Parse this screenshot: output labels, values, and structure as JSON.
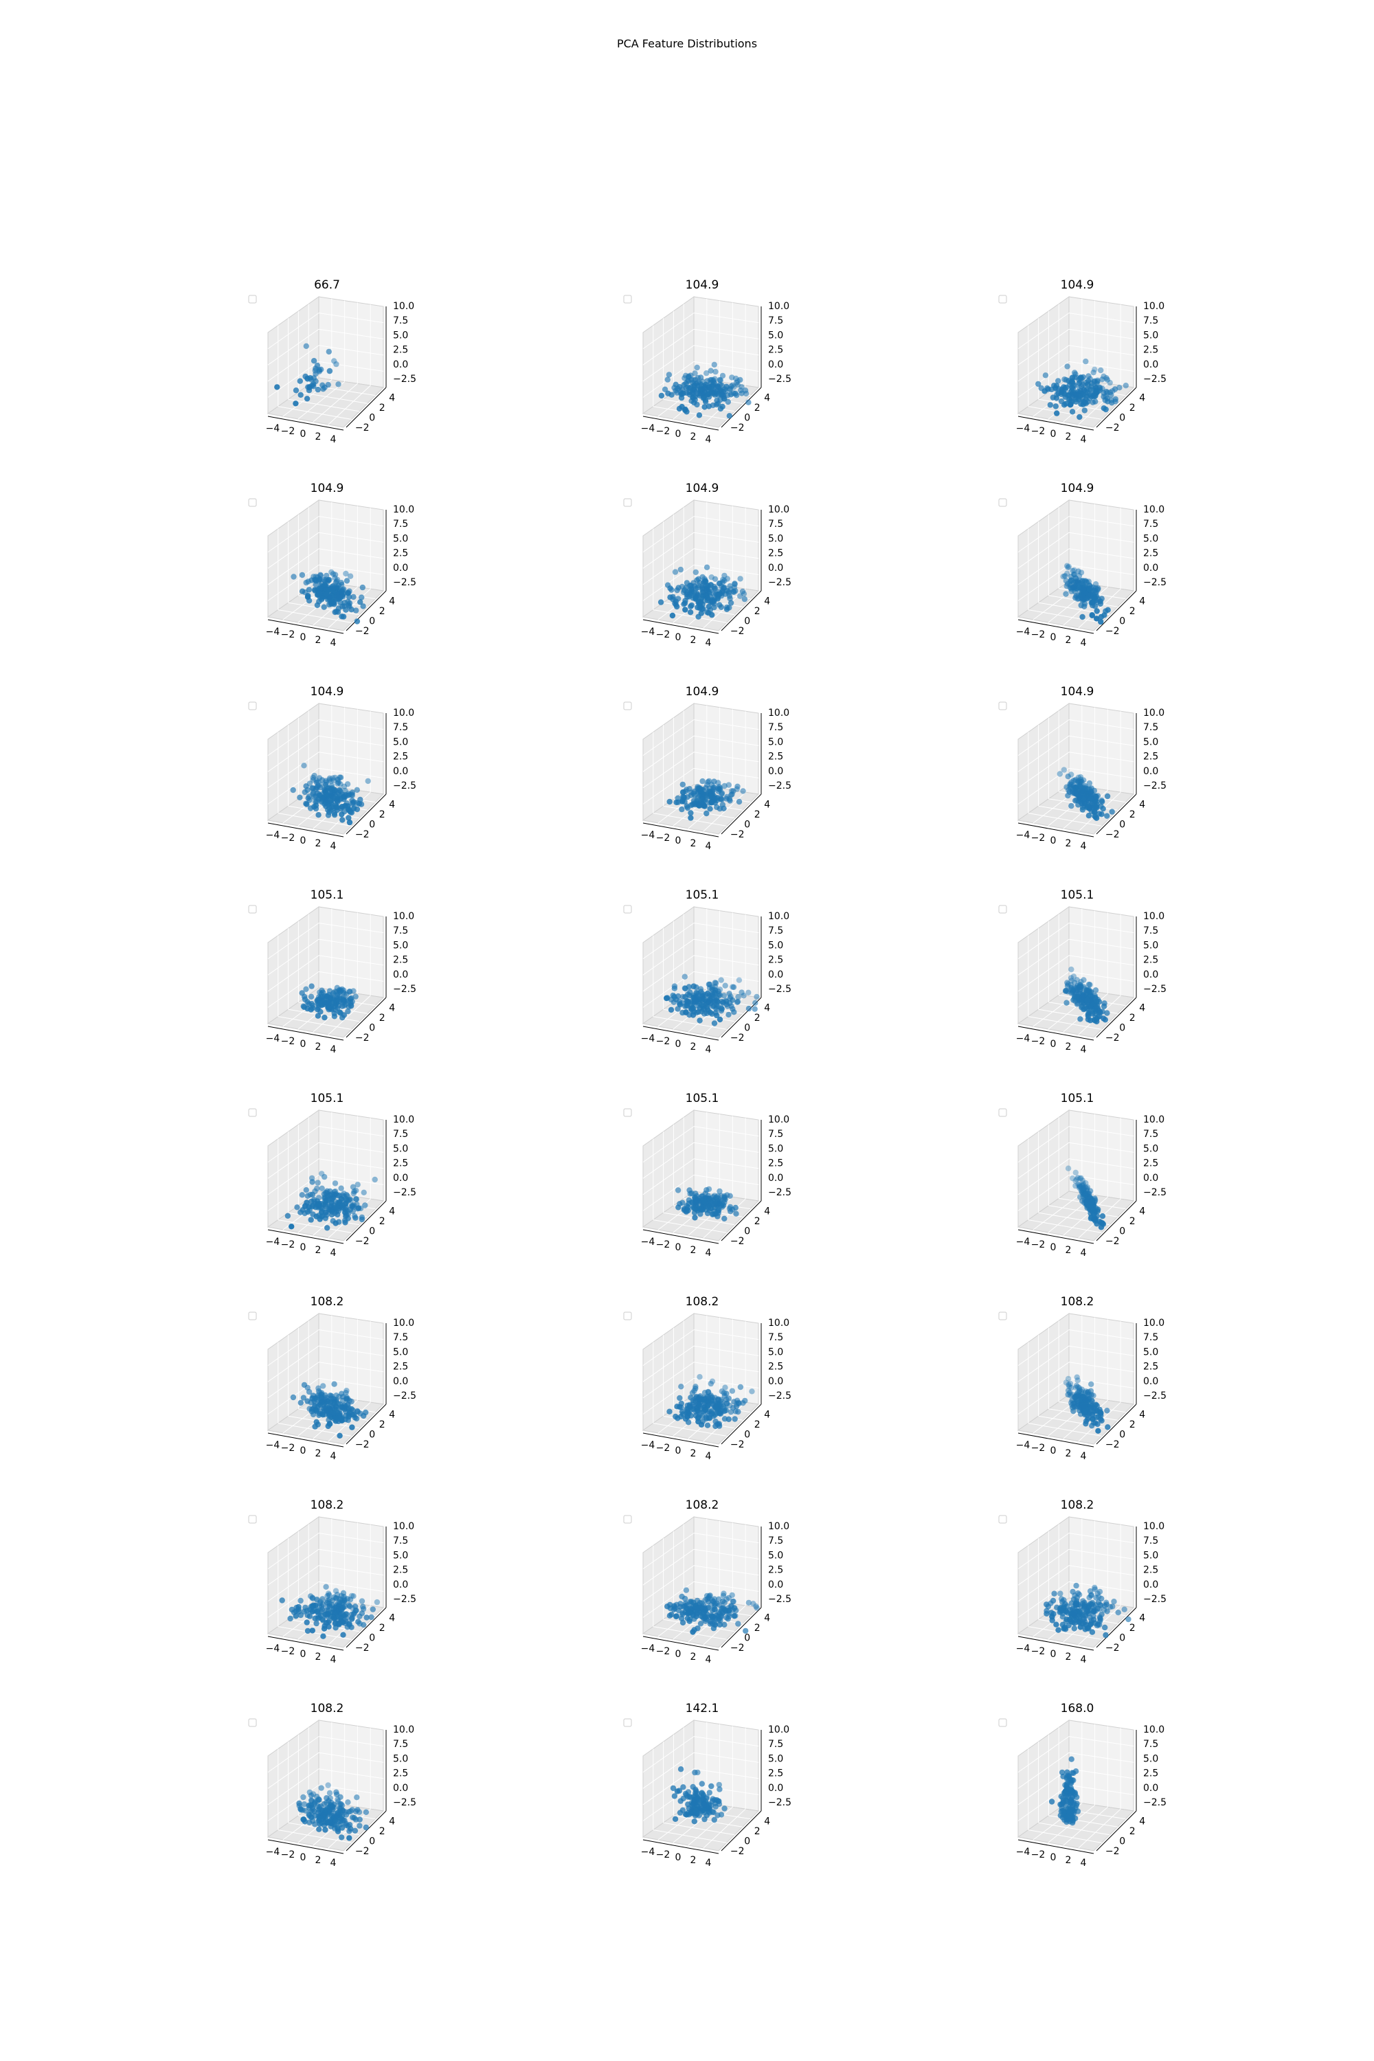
{
  "figure": {
    "title": "PCA Feature Distributions"
  },
  "chart_data": {
    "type": "scatter",
    "projection": "3d",
    "layout_grid": "8 rows x 3 columns",
    "marker_color": "#1f77b4",
    "pane_color": "#f2f2f2",
    "grid": true,
    "legend": "top-left (empty)",
    "x_ticks": [
      "−4",
      "−2",
      "0",
      "2",
      "4"
    ],
    "y_ticks": [
      "−2",
      "0",
      "2",
      "4"
    ],
    "z_ticks": [
      "10.0",
      "7.5",
      "5.0",
      "2.5",
      "0.0",
      "−2.5"
    ],
    "xlim": [
      -5,
      5
    ],
    "ylim": [
      -3,
      5
    ],
    "zlim": [
      -3,
      10
    ],
    "panels": [
      {
        "title": "66.7",
        "pattern": "sparse"
      },
      {
        "title": "104.9",
        "pattern": "cloud"
      },
      {
        "title": "104.9",
        "pattern": "cloud"
      },
      {
        "title": "104.9",
        "pattern": "band"
      },
      {
        "title": "104.9",
        "pattern": "cloud"
      },
      {
        "title": "104.9",
        "pattern": "diagonal"
      },
      {
        "title": "104.9",
        "pattern": "band"
      },
      {
        "title": "104.9",
        "pattern": "compact"
      },
      {
        "title": "104.9",
        "pattern": "diagonal"
      },
      {
        "title": "105.1",
        "pattern": "compact"
      },
      {
        "title": "105.1",
        "pattern": "cloud"
      },
      {
        "title": "105.1",
        "pattern": "diagonal"
      },
      {
        "title": "105.1",
        "pattern": "cloud"
      },
      {
        "title": "105.1",
        "pattern": "compact"
      },
      {
        "title": "105.1",
        "pattern": "line"
      },
      {
        "title": "108.2",
        "pattern": "band"
      },
      {
        "title": "108.2",
        "pattern": "cloud"
      },
      {
        "title": "108.2",
        "pattern": "diagonal"
      },
      {
        "title": "108.2",
        "pattern": "cloud"
      },
      {
        "title": "108.2",
        "pattern": "cloud"
      },
      {
        "title": "108.2",
        "pattern": "cloud"
      },
      {
        "title": "108.2",
        "pattern": "band"
      },
      {
        "title": "142.1",
        "pattern": "column"
      },
      {
        "title": "168.0",
        "pattern": "vertical"
      }
    ]
  }
}
